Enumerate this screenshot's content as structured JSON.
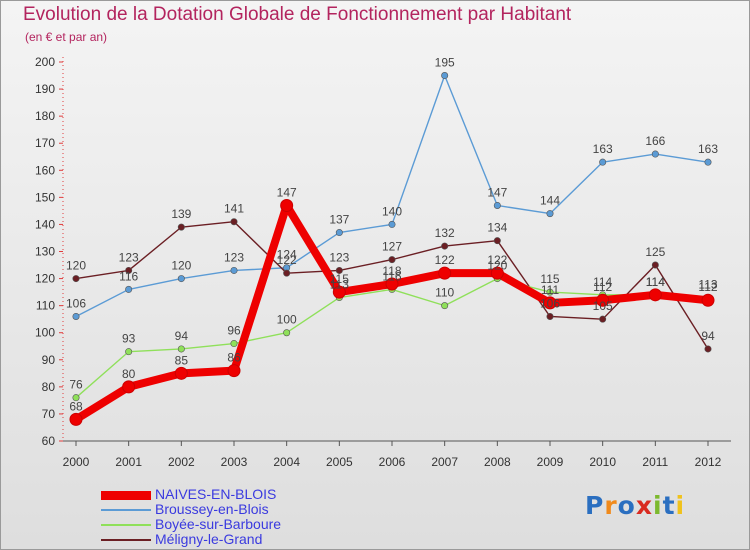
{
  "header": {
    "title": "Evolution de la Dotation Globale de Fonctionnement par Habitant",
    "subtitle": "(en € et par an)"
  },
  "logo": {
    "text": "Proxiti",
    "letters": [
      {
        "ch": "P",
        "color": "#2b6fc0"
      },
      {
        "ch": "r",
        "color": "#f08a1c"
      },
      {
        "ch": "o",
        "color": "#2b6fc0"
      },
      {
        "ch": "x",
        "color": "#d92a20"
      },
      {
        "ch": "i",
        "color": "#7cb92e"
      },
      {
        "ch": "t",
        "color": "#2b6fc0"
      },
      {
        "ch": "i",
        "color": "#f0c21c"
      }
    ]
  },
  "chart_data": {
    "type": "line",
    "title": "Evolution de la Dotation Globale de Fonctionnement par Habitant",
    "subtitle": "(en € et par an)",
    "xlabel": "",
    "ylabel": "",
    "categories": [
      "2000",
      "2001",
      "2002",
      "2003",
      "2004",
      "2005",
      "2006",
      "2007",
      "2008",
      "2009",
      "2010",
      "2011",
      "2012"
    ],
    "ylim": [
      60,
      200
    ],
    "yticks": [
      "60",
      "70",
      "80",
      "90",
      "100",
      "110",
      "120",
      "130",
      "140",
      "150",
      "160",
      "170",
      "180",
      "190",
      "200"
    ],
    "legend_position": "bottom-left",
    "grid": false,
    "series": [
      {
        "name": "Broussey-en-Blois",
        "color": "#5b9bd5",
        "values": [
          106,
          116,
          120,
          123,
          124,
          137,
          140,
          195,
          147,
          144,
          163,
          166,
          163
        ],
        "labels": [
          "106",
          "116",
          "120",
          "123",
          "124",
          "137",
          "140",
          "195",
          "147",
          "144",
          "163",
          "166",
          "163"
        ]
      },
      {
        "name": "Méligny-le-Grand",
        "color": "#6b1f24",
        "values": [
          120,
          123,
          139,
          141,
          122,
          123,
          127,
          132,
          134,
          106,
          105,
          125,
          94
        ],
        "labels": [
          "120",
          "123",
          "139",
          "141",
          "122",
          "123",
          "127",
          "132",
          "134",
          "106",
          "105",
          "125",
          "94"
        ]
      },
      {
        "name": "Boyée-sur-Barboure",
        "color": "#8fe05a",
        "values": [
          76,
          93,
          94,
          96,
          100,
          113,
          116,
          110,
          120,
          115,
          114,
          114,
          113
        ],
        "labels": [
          "76",
          "93",
          "94",
          "96",
          "100",
          "113",
          "116",
          "110",
          "120",
          "115",
          "114",
          "114",
          "113"
        ]
      },
      {
        "name": "NAIVES-EN-BLOIS",
        "color": "#ee0000",
        "values": [
          68,
          80,
          85,
          86,
          147,
          115,
          118,
          122,
          122,
          111,
          112,
          114,
          112
        ],
        "labels": [
          "68",
          "80",
          "85",
          "86",
          "147",
          "115",
          "118",
          "122",
          "122",
          "111",
          "112",
          "114",
          "112"
        ]
      }
    ],
    "legend": [
      "NAIVES-EN-BLOIS",
      "Broussey-en-Blois",
      "Boyée-sur-Barboure",
      "Méligny-le-Grand"
    ]
  }
}
